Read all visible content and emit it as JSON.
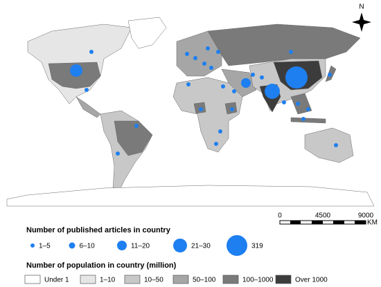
{
  "map": {
    "compass": "N",
    "scale": {
      "labels": [
        "0",
        "4500",
        "9000"
      ],
      "unit": "KM"
    }
  },
  "legend_articles": {
    "title": "Number of published articles in country",
    "items": [
      {
        "label": "1–5"
      },
      {
        "label": "6–10"
      },
      {
        "label": "11–20"
      },
      {
        "label": "21–30"
      },
      {
        "label": "319"
      }
    ]
  },
  "legend_population": {
    "title": "Number of population in country (million)",
    "items": [
      {
        "label": "Under 1",
        "color": "#ffffff"
      },
      {
        "label": "1–10",
        "color": "#e6e6e6"
      },
      {
        "label": "10–50",
        "color": "#c8c8c8"
      },
      {
        "label": "50–100",
        "color": "#a6a6a6"
      },
      {
        "label": "100–1000",
        "color": "#7a7a7a"
      },
      {
        "label": "Over 1000",
        "color": "#3c3c3c"
      }
    ]
  }
}
